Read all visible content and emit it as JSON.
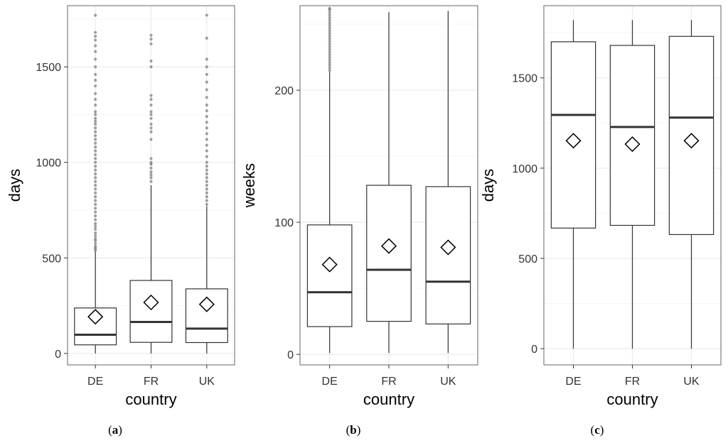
{
  "chart_data": [
    {
      "type": "boxplot",
      "caption": "a",
      "xlabel": "country",
      "ylabel": "days",
      "categories": [
        "DE",
        "FR",
        "UK"
      ],
      "ylim": [
        -60,
        1820
      ],
      "yticks": [
        0,
        500,
        1000,
        1500
      ],
      "grid": true,
      "boxes": [
        {
          "category": "DE",
          "lower_whisker": 0,
          "q1": 45,
          "median": 98,
          "q3": 238,
          "upper_whisker": 535,
          "mean": 192,
          "outliers": [
            540,
            550,
            560,
            575,
            590,
            600,
            615,
            630,
            650,
            665,
            680,
            700,
            720,
            740,
            760,
            780,
            800,
            820,
            840,
            860,
            880,
            900,
            920,
            940,
            960,
            980,
            1000,
            1020,
            1040,
            1060,
            1080,
            1100,
            1120,
            1140,
            1160,
            1180,
            1200,
            1215,
            1230,
            1250,
            1265,
            1300,
            1330,
            1360,
            1400,
            1430,
            1460,
            1500,
            1540,
            1580,
            1610,
            1640,
            1660,
            1680,
            1770
          ]
        },
        {
          "category": "FR",
          "lower_whisker": 0,
          "q1": 58,
          "median": 165,
          "q3": 382,
          "upper_whisker": 880,
          "mean": 267,
          "outliers": [
            900,
            920,
            935,
            950,
            970,
            990,
            1000,
            1020,
            1120,
            1160,
            1180,
            1200,
            1230,
            1250,
            1265,
            1300,
            1330,
            1350,
            1500,
            1530,
            1620,
            1645,
            1665
          ]
        },
        {
          "category": "UK",
          "lower_whisker": 0,
          "q1": 57,
          "median": 130,
          "q3": 338,
          "upper_whisker": 770,
          "mean": 257,
          "outliers": [
            780,
            800,
            820,
            840,
            860,
            880,
            900,
            920,
            940,
            960,
            980,
            1000,
            1030,
            1060,
            1090,
            1120,
            1150,
            1180,
            1210,
            1240,
            1270,
            1300,
            1340,
            1380,
            1420,
            1460,
            1500,
            1540,
            1650,
            1770
          ]
        }
      ]
    },
    {
      "type": "boxplot",
      "caption": "b",
      "xlabel": "country",
      "ylabel": "weeks",
      "categories": [
        "DE",
        "FR",
        "UK"
      ],
      "ylim": [
        -8,
        264
      ],
      "yticks": [
        0,
        100,
        200
      ],
      "grid": true,
      "boxes": [
        {
          "category": "DE",
          "lower_whisker": 1,
          "q1": 21,
          "median": 47,
          "q3": 98,
          "upper_whisker": 214,
          "mean": 68,
          "outliers": [
            215,
            217,
            219,
            221,
            223,
            225,
            227,
            229,
            231,
            233,
            235,
            237,
            239,
            241,
            243,
            245,
            247,
            249,
            251,
            253,
            255,
            257,
            259,
            261,
            262
          ]
        },
        {
          "category": "FR",
          "lower_whisker": 1,
          "q1": 25,
          "median": 64,
          "q3": 128,
          "upper_whisker": 259,
          "mean": 82,
          "outliers": []
        },
        {
          "category": "UK",
          "lower_whisker": 1,
          "q1": 23,
          "median": 55,
          "q3": 127,
          "upper_whisker": 260,
          "mean": 81,
          "outliers": []
        }
      ]
    },
    {
      "type": "boxplot",
      "caption": "c",
      "xlabel": "country",
      "ylabel": "days",
      "categories": [
        "DE",
        "FR",
        "UK"
      ],
      "ylim": [
        -90,
        1900
      ],
      "yticks": [
        0,
        500,
        1000,
        1500
      ],
      "grid": true,
      "boxes": [
        {
          "category": "DE",
          "lower_whisker": 0,
          "q1": 668,
          "median": 1295,
          "q3": 1700,
          "upper_whisker": 1820,
          "mean": 1152,
          "outliers": []
        },
        {
          "category": "FR",
          "lower_whisker": 0,
          "q1": 683,
          "median": 1228,
          "q3": 1680,
          "upper_whisker": 1820,
          "mean": 1133,
          "outliers": []
        },
        {
          "category": "UK",
          "lower_whisker": 0,
          "q1": 632,
          "median": 1280,
          "q3": 1730,
          "upper_whisker": 1820,
          "mean": 1152,
          "outliers": []
        }
      ]
    }
  ],
  "colors": {
    "panel_border": "#7f7f7f",
    "grid_major": "#ebebeb",
    "grid_minor": "#f5f5f5",
    "box_line": "#333333",
    "outlier": "#555555",
    "tick_text": "#333333"
  }
}
